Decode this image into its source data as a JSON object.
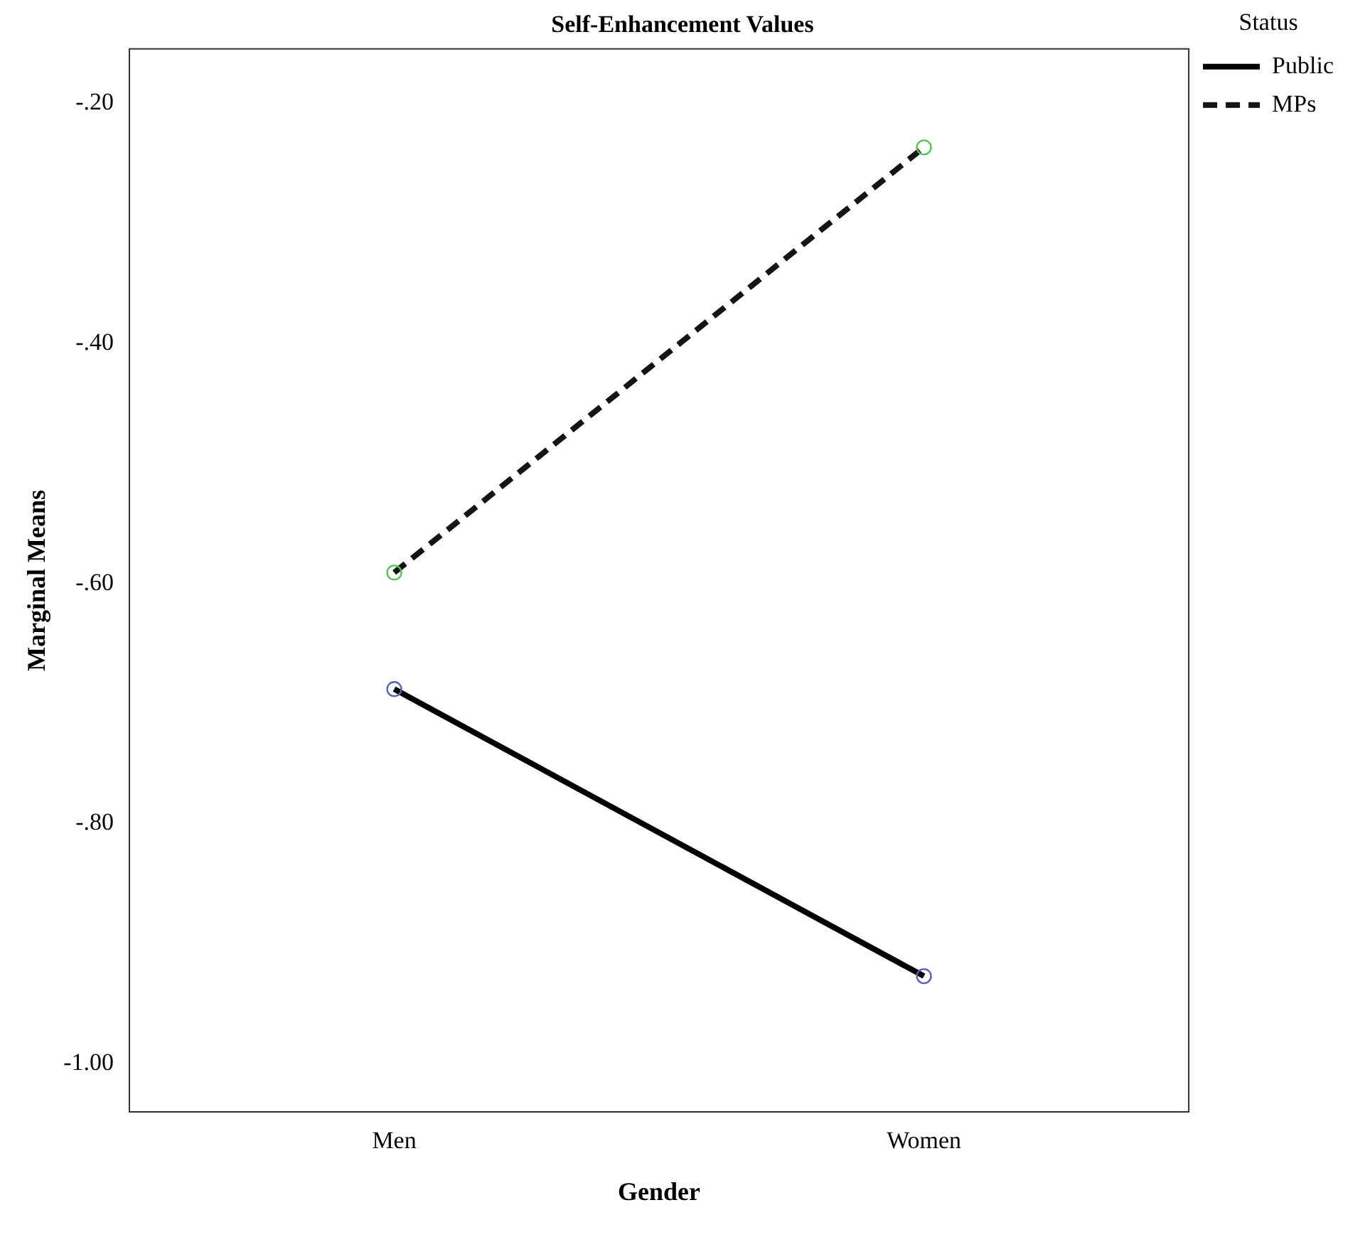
{
  "chart_data": {
    "type": "line",
    "title": "Self-Enhancement Values",
    "xlabel": "Gender",
    "ylabel": "Marginal Means",
    "legend_title": "Status",
    "categories": [
      "Men",
      "Women"
    ],
    "series": [
      {
        "name": "Public",
        "color": "#000000",
        "colors": [
          "#5a5fb8",
          "#5a5fb8"
        ],
        "line_style": "solid",
        "values": [
          -0.688,
          -0.927
        ]
      },
      {
        "name": "MPs",
        "color": "#141414",
        "colors": [
          "#55c455",
          "#55c455"
        ],
        "line_style": "dashed",
        "values": [
          -0.591,
          -0.237
        ]
      }
    ],
    "ylim": [
      -1.04,
      -0.155
    ],
    "yticks": [
      {
        "value": -1,
        "label": "-1.00"
      },
      {
        "value": -0.8,
        "label": "-.80"
      },
      {
        "value": -0.6,
        "label": "-.60"
      },
      {
        "value": -0.4,
        "label": "-.40"
      },
      {
        "value": -0.2,
        "label": "-.20"
      }
    ],
    "marker": "circle",
    "grid": false,
    "legend": "top right"
  }
}
